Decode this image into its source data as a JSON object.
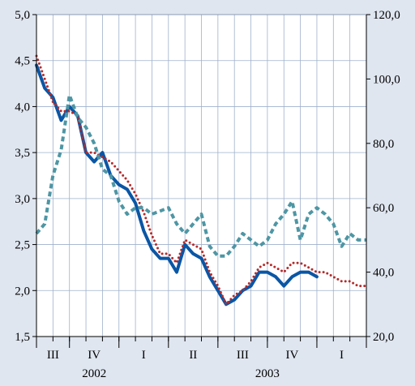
{
  "chart_data": {
    "type": "line",
    "title": "",
    "xlabel": "",
    "ylabel": "",
    "x_period_labels": [
      "III",
      "IV",
      "I",
      "II",
      "III",
      "IV",
      "I"
    ],
    "x_year_labels": [
      "2002",
      "2003"
    ],
    "left_axis": {
      "ylim": [
        1.5,
        5.0
      ],
      "ticks": [
        "1,5",
        "2,0",
        "2,5",
        "3,0",
        "3,5",
        "4,0",
        "4,5",
        "5,0"
      ]
    },
    "right_axis": {
      "ylim": [
        20.0,
        120.0
      ],
      "ticks": [
        "20,0",
        "40,0",
        "60,0",
        "80,0",
        "100,0",
        "120,0"
      ]
    },
    "grid": true,
    "legend": "none",
    "series": [
      {
        "axis": "left",
        "style": "solid-thick",
        "color": "#0a56a5",
        "x": [
          0.0,
          0.5,
          1.0,
          1.5,
          2.0,
          2.5,
          3.0,
          3.5,
          4.0,
          4.5,
          5.0,
          5.5,
          6.0,
          6.5,
          7.0,
          7.5,
          8.0,
          8.5,
          9.0,
          9.5,
          10.0,
          10.5,
          11.0,
          11.5,
          12.0,
          12.5,
          13.0,
          13.5,
          14.0,
          14.5,
          15.0,
          15.5,
          16.0,
          16.5,
          17.0,
          17.5,
          18.0,
          18.5,
          19.0,
          19.5,
          20.0
        ],
        "values": [
          4.45,
          4.2,
          4.1,
          3.85,
          4.0,
          3.9,
          3.5,
          3.4,
          3.5,
          3.25,
          3.15,
          3.1,
          2.95,
          2.65,
          2.45,
          2.35,
          2.35,
          2.2,
          2.5,
          2.4,
          2.35,
          2.15,
          2.0,
          1.85,
          1.9,
          2.0,
          2.05,
          2.2,
          2.2,
          2.15,
          2.05,
          2.15,
          2.2,
          2.2,
          2.15,
          null,
          null,
          null,
          null,
          null,
          null
        ]
      },
      {
        "axis": "left",
        "style": "dotted",
        "color": "#b52b2b",
        "x": [
          0.0,
          0.5,
          1.0,
          1.5,
          2.0,
          2.5,
          3.0,
          3.5,
          4.0,
          4.5,
          5.0,
          5.5,
          6.0,
          6.5,
          7.0,
          7.5,
          8.0,
          8.5,
          9.0,
          9.5,
          10.0,
          10.5,
          11.0,
          11.5,
          12.0,
          12.5,
          13.0,
          13.5,
          14.0,
          14.5,
          15.0,
          15.5,
          16.0,
          16.5,
          17.0,
          17.5,
          18.0,
          18.5,
          19.0,
          19.5,
          20.0
        ],
        "values": [
          4.55,
          4.3,
          4.05,
          3.95,
          3.95,
          3.9,
          3.5,
          3.5,
          3.45,
          3.4,
          3.3,
          3.2,
          3.05,
          2.85,
          2.6,
          2.4,
          2.4,
          2.3,
          2.55,
          2.5,
          2.45,
          2.2,
          2.05,
          1.85,
          1.95,
          2.0,
          2.1,
          2.25,
          2.3,
          2.25,
          2.2,
          2.3,
          2.3,
          2.25,
          2.2,
          2.2,
          2.15,
          2.1,
          2.1,
          2.05,
          2.05
        ]
      },
      {
        "axis": "right",
        "style": "dashed",
        "color": "#4e96a4",
        "x": [
          0.0,
          0.5,
          1.0,
          1.5,
          2.0,
          2.5,
          3.0,
          3.5,
          4.0,
          4.5,
          5.0,
          5.5,
          6.0,
          6.5,
          7.0,
          7.5,
          8.0,
          8.5,
          9.0,
          9.5,
          10.0,
          10.5,
          11.0,
          11.5,
          12.0,
          12.5,
          13.0,
          13.5,
          14.0,
          14.5,
          15.0,
          15.5,
          16.0,
          16.5,
          17.0,
          17.5,
          18.0,
          18.5,
          19.0,
          19.5,
          20.0
        ],
        "values": [
          52,
          55,
          70,
          78,
          95,
          88,
          85,
          80,
          72,
          70,
          62,
          58,
          60,
          60,
          58,
          59,
          60,
          55,
          52,
          55,
          58,
          48,
          45,
          45,
          48,
          52,
          50,
          48,
          50,
          55,
          58,
          62,
          50,
          58,
          60,
          58,
          55,
          48,
          52,
          50,
          50
        ]
      }
    ]
  }
}
